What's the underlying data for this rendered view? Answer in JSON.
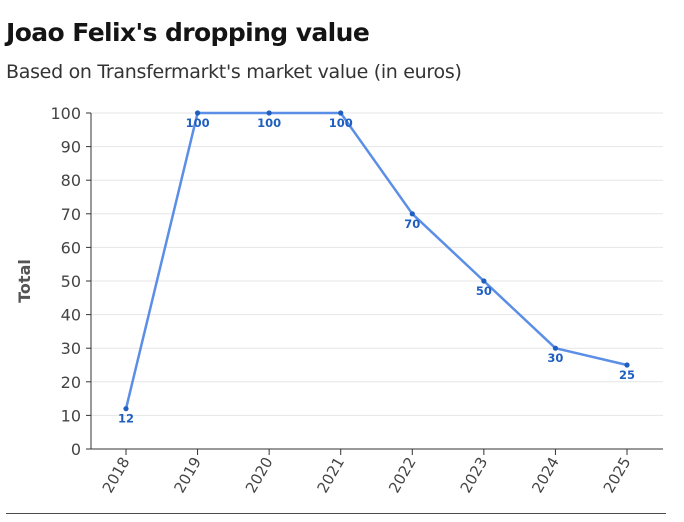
{
  "header": {
    "title": "Joao Felix's dropping value",
    "subtitle": "Based on Transfermarkt's market value (in euros)"
  },
  "colors": {
    "line": "#5b8ee6",
    "point": "#1f5fbf",
    "label": "#1f5fbf",
    "grid": "#e6e6e6",
    "axis": "#333333"
  },
  "chart_data": {
    "type": "line",
    "title": "Joao Felix's dropping value",
    "subtitle": "Based on Transfermarkt's market value (in euros)",
    "xlabel": "",
    "ylabel": "Total",
    "categories": [
      "2018",
      "2019",
      "2020",
      "2021",
      "2022",
      "2023",
      "2024",
      "2025"
    ],
    "series": [
      {
        "values": [
          12,
          100,
          100,
          100,
          70,
          50,
          30,
          25
        ]
      }
    ],
    "data_labels": [
      "12",
      "100",
      "100",
      "100",
      "70",
      "50",
      "30",
      "25"
    ],
    "ylim": [
      0,
      100
    ],
    "yticks": [
      0,
      10,
      20,
      30,
      40,
      50,
      60,
      70,
      80,
      90,
      100
    ],
    "ytick_labels": [
      "0",
      "10",
      "20",
      "30",
      "40",
      "50",
      "60",
      "70",
      "80",
      "90",
      "100"
    ],
    "grid": true,
    "legend": "none"
  }
}
